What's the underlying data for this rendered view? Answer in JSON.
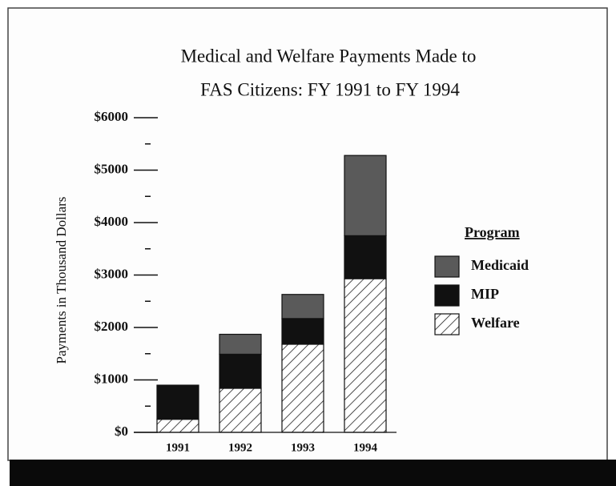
{
  "chart_data": {
    "type": "stacked_bar",
    "title": [
      "Medical and Welfare Payments Made to",
      "FAS Citizens:  FY 1991 to FY 1994"
    ],
    "y_label": "Payments in Thousand Dollars",
    "categories": [
      "1991",
      "1992",
      "1993",
      "1994"
    ],
    "series": [
      {
        "name": "Medicaid",
        "color": "#5a5a5a",
        "values": [
          0,
          380,
          460,
          1530
        ]
      },
      {
        "name": "MIP",
        "color": "#111111",
        "values": [
          650,
          650,
          490,
          820
        ]
      },
      {
        "name": "Welfare",
        "color": "#ffffff",
        "hatch": "diagonal",
        "values": [
          250,
          840,
          1680,
          2930
        ]
      }
    ],
    "legend_title": "Program",
    "legend": "right",
    "ylim": [
      0,
      6000
    ],
    "yticks": [
      {
        "value": 0,
        "label": "$0"
      },
      {
        "value": 1000,
        "label": "$1000"
      },
      {
        "value": 2000,
        "label": "$2000"
      },
      {
        "value": 3000,
        "label": "$3000"
      },
      {
        "value": 4000,
        "label": "$4000"
      },
      {
        "value": 5000,
        "label": "$5000"
      },
      {
        "value": 6000,
        "label": "$6000"
      }
    ],
    "minor_yticks": [
      500,
      1500,
      2500,
      3500,
      4500,
      5500
    ]
  }
}
